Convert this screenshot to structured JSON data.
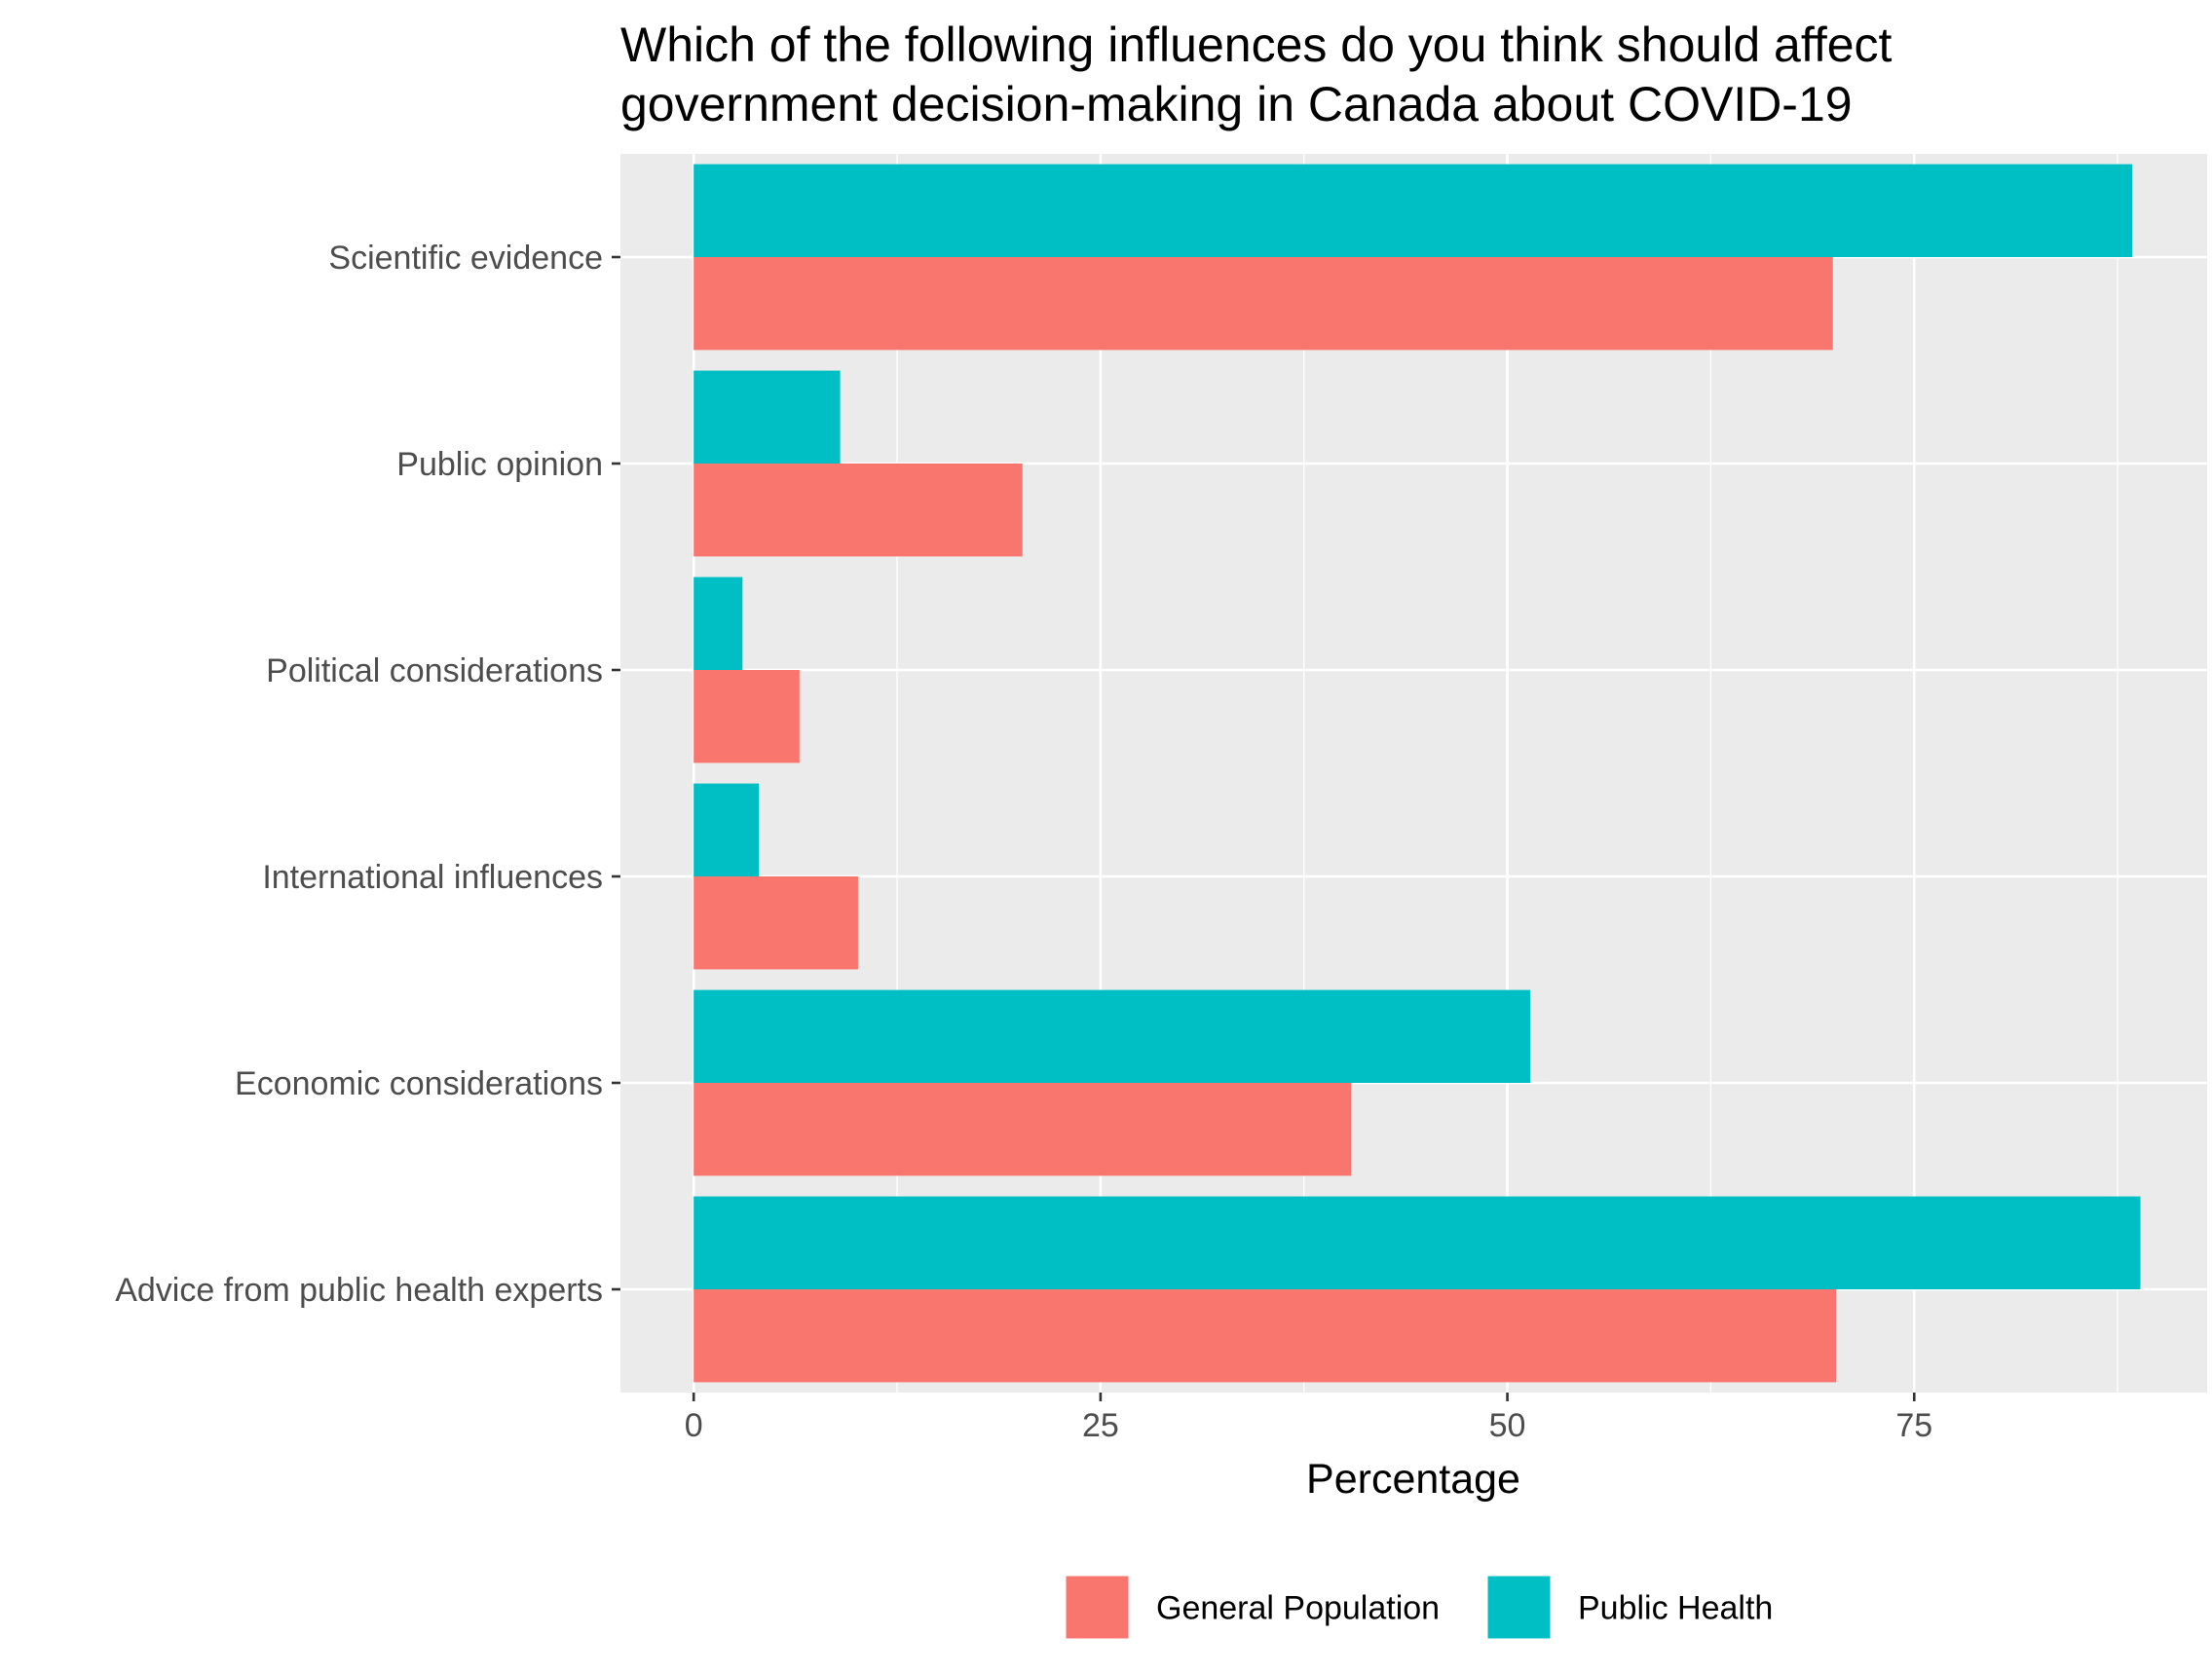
{
  "chart_data": {
    "type": "bar",
    "orientation": "horizontal",
    "title": "Which of the following influences do you think should affect government decision-making in Canada about COVID-19",
    "title_lines": [
      "Which of the following influences do you think should affect",
      "government decision-making in Canada about COVID-19"
    ],
    "xlabel": "Percentage",
    "ylabel": "",
    "xlim": [
      -4.5,
      93
    ],
    "x_ticks": [
      0,
      25,
      50,
      75
    ],
    "x_tick_labels": [
      "0",
      "25",
      "50",
      "75"
    ],
    "categories": [
      "Scientific evidence",
      "Public opinion",
      "Political considerations",
      "International influences",
      "Economic considerations",
      "Advice from public health experts"
    ],
    "series": [
      {
        "name": "General Population",
        "color": "#F8766D",
        "values": [
          70.0,
          20.2,
          6.5,
          10.1,
          40.4,
          70.2
        ]
      },
      {
        "name": "Public Health",
        "color": "#00BFC4",
        "values": [
          88.4,
          9.0,
          3.0,
          4.0,
          51.4,
          88.9
        ]
      }
    ],
    "grid": true,
    "legend_position": "bottom",
    "panel_background": "#EBEBEB"
  }
}
